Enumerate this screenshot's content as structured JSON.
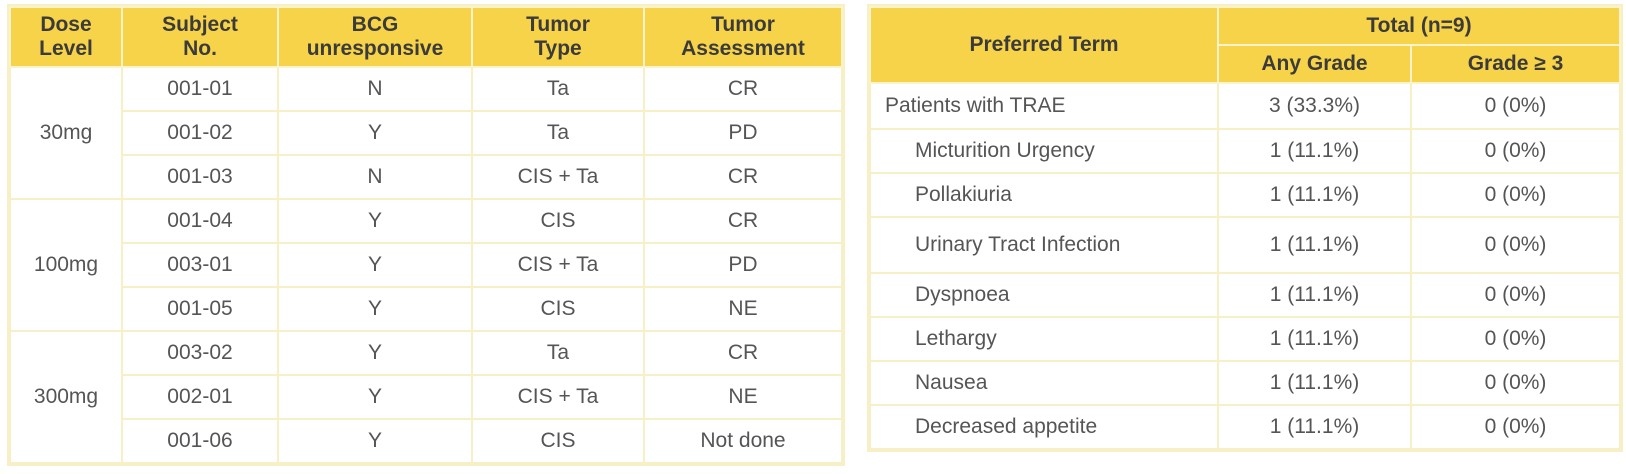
{
  "left_table": {
    "headers": [
      "Dose\nLevel",
      "Subject\nNo.",
      "BCG\nunresponsive",
      "Tumor\nType",
      "Tumor\nAssessment"
    ],
    "groups": [
      {
        "dose": "30mg",
        "rows": [
          {
            "subject": "001-01",
            "bcg": "N",
            "type": "Ta",
            "assessment": "CR"
          },
          {
            "subject": "001-02",
            "bcg": "Y",
            "type": "Ta",
            "assessment": "PD"
          },
          {
            "subject": "001-03",
            "bcg": "N",
            "type": "CIS + Ta",
            "assessment": "CR"
          }
        ]
      },
      {
        "dose": "100mg",
        "rows": [
          {
            "subject": "001-04",
            "bcg": "Y",
            "type": "CIS",
            "assessment": "CR"
          },
          {
            "subject": "003-01",
            "bcg": "Y",
            "type": "CIS + Ta",
            "assessment": "PD"
          },
          {
            "subject": "001-05",
            "bcg": "Y",
            "type": "CIS",
            "assessment": "NE"
          }
        ]
      },
      {
        "dose": "300mg",
        "rows": [
          {
            "subject": "003-02",
            "bcg": "Y",
            "type": "Ta",
            "assessment": "CR"
          },
          {
            "subject": "002-01",
            "bcg": "Y",
            "type": "CIS + Ta",
            "assessment": "NE"
          },
          {
            "subject": "001-06",
            "bcg": "Y",
            "type": "CIS",
            "assessment": "Not done"
          }
        ]
      }
    ]
  },
  "right_table": {
    "header_term": "Preferred Term",
    "header_total": "Total (n=9)",
    "header_any": "Any Grade",
    "header_g3": "Grade ≥ 3",
    "rows": [
      {
        "term": "Patients with TRAE",
        "any": "3 (33.3%)",
        "g3": "0 (0%)"
      },
      {
        "term": "Micturition Urgency",
        "any": "1 (11.1%)",
        "g3": "0 (0%)"
      },
      {
        "term": "Pollakiuria",
        "any": "1 (11.1%)",
        "g3": "0 (0%)"
      },
      {
        "term": "Urinary Tract Infection",
        "any": "1 (11.1%)",
        "g3": "0 (0%)"
      },
      {
        "term": "Dyspnoea",
        "any": "1 (11.1%)",
        "g3": "0 (0%)"
      },
      {
        "term": "Lethargy",
        "any": "1 (11.1%)",
        "g3": "0 (0%)"
      },
      {
        "term": "Nausea",
        "any": "1 (11.1%)",
        "g3": "0 (0%)"
      },
      {
        "term": "Decreased appetite",
        "any": "1 (11.1%)",
        "g3": "0 (0%)"
      }
    ]
  },
  "colors": {
    "header_bg": "#f6d348",
    "border": "#f7efc6",
    "text": "#555555"
  }
}
